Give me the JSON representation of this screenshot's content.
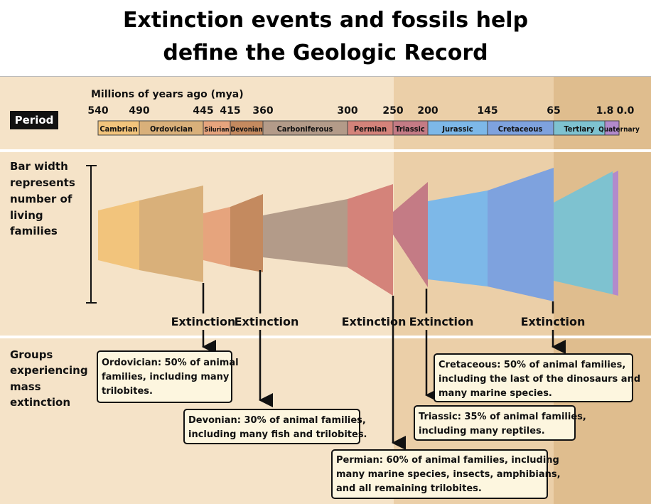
{
  "title": {
    "line1": "Extinction events and fossils help",
    "line2": "define the Geologic Record"
  },
  "timeline": {
    "axis_label": "Millions of years ago (mya)",
    "period_label": "Period",
    "ticks": [
      "540",
      "490",
      "445",
      "415",
      "360",
      "300",
      "250",
      "200",
      "145",
      "65",
      "1.8",
      "0.0"
    ],
    "periods": [
      "Cambrian",
      "Ordovician",
      "Silurian",
      "Devonian",
      "Carboniferous",
      "Permian",
      "Triassic",
      "Jurassic",
      "Cretaceous",
      "Tertiary",
      "Quaternary"
    ]
  },
  "bar_section": {
    "label_lines": [
      "Bar width",
      "represents",
      "number of",
      "living",
      "families"
    ]
  },
  "extinction_label": "Extinction",
  "groups_section": {
    "label_lines": [
      "Groups",
      "experiencing",
      "mass",
      "extinction"
    ]
  },
  "events": {
    "ordovician": [
      "Ordovician: 50% of animal",
      "families, including many",
      "trilobites."
    ],
    "devonian": [
      "Devonian: 30% of animal families,",
      "including many fish and trilobites."
    ],
    "permian": [
      "Permian: 60% of animal families, including",
      "many marine species, insects, amphibians,",
      "and all remaining trilobites."
    ],
    "triassic": [
      "Triassic: 35% of animal families,",
      "including many reptiles."
    ],
    "cretaceous": [
      "Cretaceous: 50% of animal families,",
      "including the last of the dinosaurs and",
      "many marine species."
    ]
  },
  "colors": {
    "bg_paleozoic": "#f5e3c8",
    "bg_mesozoic": "#ebcfa8",
    "bg_cenozoic": "#dfbd8e",
    "cambrian": "#f2c47c",
    "ordovician": "#d9b07a",
    "silurian": "#e6a47d",
    "devonian": "#c48a5f",
    "carboniferous": "#b39b89",
    "permian": "#d4837a",
    "triassic": "#c47b85",
    "jurassic": "#7db8e8",
    "cretaceous": "#7ea2de",
    "tertiary": "#7ec2d0",
    "quaternary": "#b28acb",
    "box_fill": "#fdf6df"
  }
}
